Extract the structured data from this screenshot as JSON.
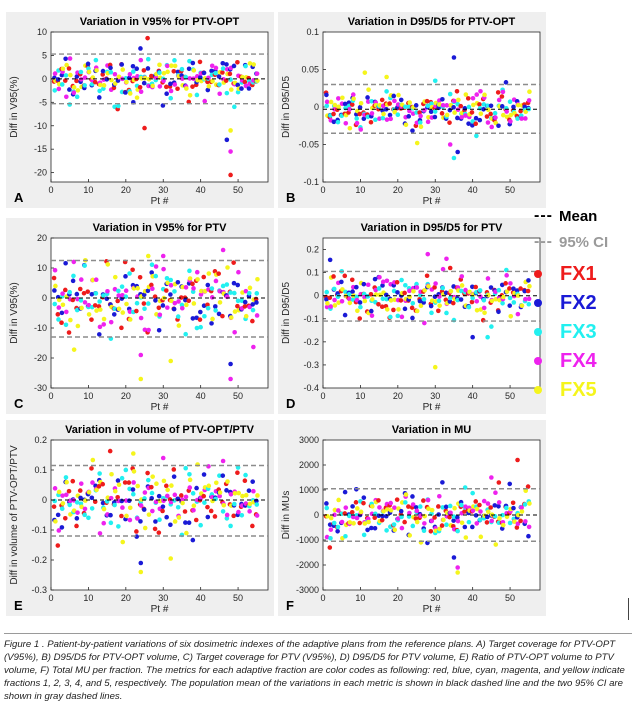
{
  "legend": {
    "mean_dash": "---",
    "mean_label": "Mean",
    "ci_dash": "---",
    "ci_label": "95% CI",
    "mean_color": "#000000",
    "ci_color": "#9a9a9a",
    "fractions": [
      {
        "label": "FX1",
        "color": "#ee1c1c"
      },
      {
        "label": "FX2",
        "color": "#1a1ad6"
      },
      {
        "label": "FX3",
        "color": "#22f0f0"
      },
      {
        "label": "FX4",
        "color": "#ee22ee"
      },
      {
        "label": "FX5",
        "color": "#f5f51c"
      }
    ]
  },
  "caption": "Figure 1 . Patient-by-patient variations of six dosimetric indexes of the adaptive plans from the reference plans. A) Target coverage for PTV-OPT (V95%), B) D95/D5 for PTV-OPT volume, C) Target coverage for PTV (V95%), D) D95/D5 for PTV volume, E) Ratio of PTV-OPT volume to PTV volume, F) Total MU per fraction. The metrics for each adaptive fraction are color codes as following: red, blue, cyan, magenta, and yellow indicate fractions 1, 2, 3, 4, and 5, respectively. The population mean of the variations in each metric is shown in black dashed line and the two 95% CI are shown in gray dashed lines.",
  "chart_data": [
    {
      "type": "scatter",
      "letter": "A",
      "title": "Variation in V95% for PTV-OPT",
      "xlabel": "Pt #",
      "ylabel": "Diff in V95(%)",
      "xlim": [
        0,
        58
      ],
      "ylim": [
        -22,
        10
      ],
      "xticks": [
        0,
        10,
        20,
        30,
        40,
        50
      ],
      "yticks": [
        10,
        5,
        0,
        -5,
        -10,
        -15,
        -20
      ],
      "mean": 0,
      "ci": [
        5.3,
        -5.3
      ],
      "spread": 1.6,
      "outlier_rate": 0.12,
      "outlier_spread": 4,
      "points": [
        [
          25,
          -10.5,
          0
        ],
        [
          48,
          -20.5,
          0
        ],
        [
          48,
          -15.5,
          3
        ],
        [
          48,
          -11,
          4
        ],
        [
          47,
          -13,
          1
        ],
        [
          24,
          4,
          3
        ],
        [
          26,
          4.2,
          2
        ],
        [
          22,
          -5,
          1
        ],
        [
          29,
          3,
          4
        ],
        [
          23,
          -4,
          4
        ]
      ]
    },
    {
      "type": "scatter",
      "letter": "B",
      "title": "Variation in D95/D5 for PTV-OPT",
      "xlabel": "Pt #",
      "ylabel": "Diff in D95/D5",
      "xlim": [
        0,
        58
      ],
      "ylim": [
        -0.1,
        0.1
      ],
      "xticks": [
        0,
        10,
        20,
        30,
        40,
        50
      ],
      "yticks": [
        0.1,
        0.05,
        0,
        -0.05,
        -0.1
      ],
      "mean": -0.003,
      "ci": [
        0.03,
        -0.035
      ],
      "spread": 0.011,
      "outlier_rate": 0.12,
      "outlier_spread": 0.02,
      "points": [
        [
          35,
          0.066,
          1
        ],
        [
          35,
          -0.068,
          2
        ],
        [
          36,
          -0.06,
          1
        ],
        [
          30,
          0.035,
          2
        ],
        [
          17,
          0.04,
          4
        ],
        [
          34,
          -0.05,
          3
        ]
      ]
    },
    {
      "type": "scatter",
      "letter": "C",
      "title": "Variation in V95% for PTV",
      "xlabel": "Pt #",
      "ylabel": "Diff in V95(%)",
      "xlim": [
        0,
        58
      ],
      "ylim": [
        -30,
        20
      ],
      "xticks": [
        0,
        10,
        20,
        30,
        40,
        50
      ],
      "yticks": [
        20,
        10,
        0,
        -10,
        -20,
        -30
      ],
      "mean": 0,
      "ci": [
        12.5,
        -13
      ],
      "spread": 5,
      "outlier_rate": 0.12,
      "outlier_spread": 7,
      "points": [
        [
          48,
          -27,
          3
        ],
        [
          48,
          -22,
          1
        ],
        [
          24,
          -27,
          4
        ],
        [
          24,
          -19,
          3
        ],
        [
          32,
          -21,
          4
        ],
        [
          26,
          14,
          4
        ],
        [
          30,
          14,
          3
        ],
        [
          46,
          16,
          3
        ]
      ]
    },
    {
      "type": "scatter",
      "letter": "D",
      "title": "Variation in D95/D5 for PTV",
      "xlabel": "Pt #",
      "ylabel": "Diff in D95/D5",
      "xlim": [
        0,
        58
      ],
      "ylim": [
        -0.4,
        0.25
      ],
      "xticks": [
        0,
        10,
        20,
        30,
        40,
        50
      ],
      "yticks": [
        0.2,
        0.1,
        0,
        -0.1,
        -0.2,
        -0.3,
        -0.4
      ],
      "mean": 0,
      "ci": [
        0.105,
        -0.11
      ],
      "spread": 0.04,
      "outlier_rate": 0.12,
      "outlier_spread": 0.06,
      "points": [
        [
          30,
          -0.31,
          4
        ],
        [
          28,
          0.18,
          3
        ],
        [
          33,
          0.16,
          3
        ],
        [
          40,
          -0.18,
          1
        ],
        [
          44,
          -0.18,
          2
        ],
        [
          34,
          0.12,
          0
        ]
      ]
    },
    {
      "type": "scatter",
      "letter": "E",
      "title": "Variation in volume of PTV-OPT/PTV",
      "xlabel": "Pt #",
      "ylabel": "Diff in volume of PTV-OPT/PTV",
      "xlim": [
        0,
        58
      ],
      "ylim": [
        -0.3,
        0.2
      ],
      "xticks": [
        0,
        10,
        20,
        30,
        40,
        50
      ],
      "yticks": [
        0.2,
        0.1,
        0,
        -0.1,
        -0.2,
        -0.3
      ],
      "mean": 0,
      "ci": [
        0.115,
        -0.12
      ],
      "spread": 0.045,
      "outlier_rate": 0.12,
      "outlier_spread": 0.06,
      "points": [
        [
          24,
          -0.21,
          1
        ],
        [
          24,
          -0.24,
          4
        ],
        [
          32,
          -0.195,
          4
        ],
        [
          22,
          0.155,
          4
        ],
        [
          30,
          0.14,
          3
        ],
        [
          46,
          0.13,
          3
        ]
      ]
    },
    {
      "type": "scatter",
      "letter": "F",
      "title": "Variation in MU",
      "xlabel": "Pt #",
      "ylabel": "Diff in MUs",
      "xlim": [
        0,
        58
      ],
      "ylim": [
        -3000,
        3000
      ],
      "xticks": [
        0,
        10,
        20,
        30,
        40,
        50
      ],
      "yticks": [
        3000,
        2000,
        1000,
        0,
        -1000,
        -2000,
        -3000
      ],
      "mean": 0,
      "ci": [
        1050,
        -1050
      ],
      "spread": 380,
      "outlier_rate": 0.12,
      "outlier_spread": 500,
      "points": [
        [
          52,
          2200,
          0
        ],
        [
          36,
          -2100,
          3
        ],
        [
          36,
          -2300,
          4
        ],
        [
          35,
          -1700,
          1
        ],
        [
          45,
          1500,
          3
        ],
        [
          47,
          1300,
          0
        ],
        [
          38,
          1100,
          2
        ]
      ]
    }
  ]
}
